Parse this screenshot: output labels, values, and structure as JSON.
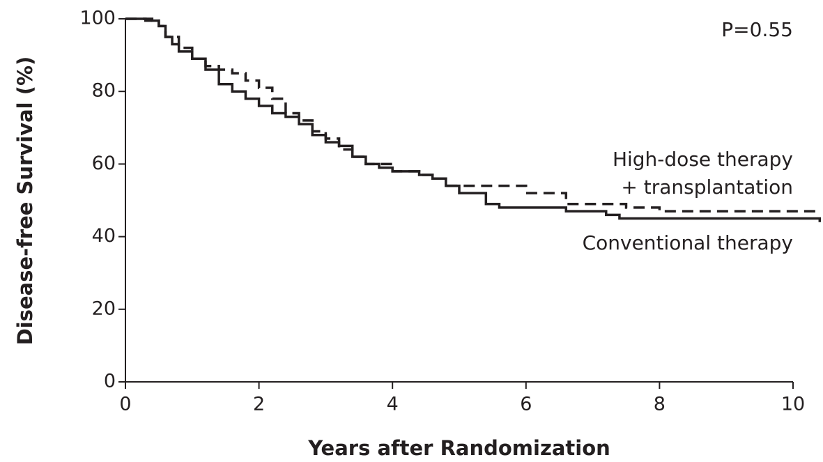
{
  "chart_data": {
    "type": "line",
    "step": true,
    "x_label": "Years after Randomization",
    "y_label": "Disease-free Survival (%)",
    "annotation": "P=0.55",
    "xlim": [
      0,
      10
    ],
    "xticks": [
      0,
      2,
      4,
      6,
      8,
      10
    ],
    "ylim": [
      0,
      100
    ],
    "yticks": [
      0,
      20,
      40,
      60,
      80,
      100
    ],
    "series": [
      {
        "name": [
          "High-dose therapy",
          "+ transplantation"
        ],
        "color": "#231f20",
        "dashed": true,
        "x": [
          0,
          0.4,
          0.5,
          0.6,
          0.8,
          1.0,
          1.2,
          1.4,
          1.6,
          1.8,
          2.0,
          2.2,
          2.4,
          2.6,
          2.8,
          3.0,
          3.2,
          3.4,
          3.6,
          4.0,
          4.4,
          4.6,
          4.8,
          5.0,
          5.5,
          6.0,
          6.6,
          7.0,
          7.5,
          8.0,
          10.4
        ],
        "values": [
          100,
          99.5,
          98,
          95,
          92,
          89,
          87,
          86,
          85,
          83,
          81,
          78,
          74,
          72,
          69,
          67,
          64,
          62,
          60,
          58,
          57,
          56,
          54,
          54,
          54,
          52,
          49,
          49,
          48,
          47,
          47
        ]
      },
      {
        "name": [
          "Conventional therapy"
        ],
        "color": "#231f20",
        "dashed": false,
        "x": [
          0,
          0.3,
          0.5,
          0.6,
          0.7,
          0.8,
          1.0,
          1.2,
          1.4,
          1.6,
          1.8,
          2.0,
          2.2,
          2.4,
          2.6,
          2.8,
          3.0,
          3.2,
          3.4,
          3.6,
          3.8,
          4.0,
          4.4,
          4.6,
          4.8,
          5.0,
          5.4,
          5.6,
          6.6,
          7.2,
          7.4,
          10.4
        ],
        "values": [
          100,
          99.5,
          98,
          95,
          93,
          91,
          89,
          86,
          82,
          80,
          78,
          76,
          74,
          73,
          71,
          68,
          66,
          65,
          62,
          60,
          59,
          58,
          57,
          56,
          54,
          52,
          49,
          48,
          47,
          46,
          45,
          44
        ]
      }
    ]
  }
}
